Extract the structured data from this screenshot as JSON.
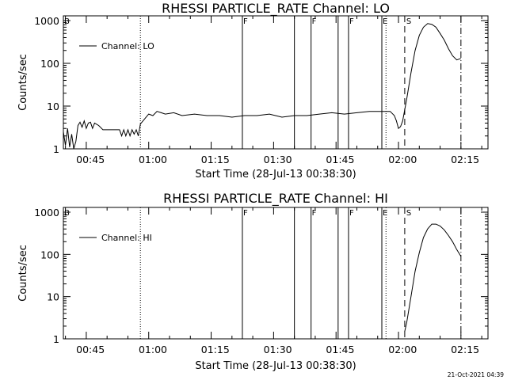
{
  "footer": {
    "timestamp": "21-Oct-2021 04:39"
  },
  "chart_data": [
    {
      "type": "line",
      "title": "RHESSI PARTICLE_RATE Channel: LO",
      "xlabel": "Start Time (28-Jul-13 00:38:30)",
      "ylabel": "Counts/sec",
      "yscale": "log",
      "ylim": [
        1,
        1000
      ],
      "xlim": [
        "00:38:30",
        "02:20:30"
      ],
      "xticks": [
        "00:45",
        "01:00",
        "01:15",
        "01:30",
        "01:45",
        "02:00",
        "02:15"
      ],
      "yticks": [
        "1",
        "10",
        "100",
        "1000"
      ],
      "legend": {
        "position": "top-left",
        "entries": [
          "Channel: LO"
        ]
      },
      "grid": false,
      "series": [
        {
          "name": "Channel: LO",
          "x": [
            "00:38:30",
            "00:39:00",
            "00:39:30",
            "00:40:00",
            "00:40:30",
            "00:41:00",
            "00:41:30",
            "00:42:00",
            "00:42:30",
            "00:43:00",
            "00:43:30",
            "00:44:00",
            "00:44:30",
            "00:45:00",
            "00:45:30",
            "00:46:00",
            "00:47:00",
            "00:48:00",
            "00:49:00",
            "00:50:00",
            "00:51:00",
            "00:52:00",
            "00:52:30",
            "00:53:00",
            "00:53:30",
            "00:54:00",
            "00:54:30",
            "00:55:00",
            "00:55:30",
            "00:56:00",
            "00:56:30",
            "00:57:00",
            "00:58:00",
            "00:59:00",
            "01:00:00",
            "01:01:00",
            "01:02:00",
            "01:03:00",
            "01:05:00",
            "01:07:00",
            "01:10:00",
            "01:13:00",
            "01:16:00",
            "01:19:00",
            "01:22:00",
            "01:25:00",
            "01:28:00",
            "01:31:00",
            "01:34:00",
            "01:37:00",
            "01:40:00",
            "01:43:00",
            "01:46:00",
            "01:49:00",
            "01:52:00",
            "01:55:00",
            "01:57:00",
            "01:58:00",
            "01:58:30",
            "01:59:00",
            "01:59:30",
            "02:00:00",
            "02:01:00",
            "02:02:00",
            "02:03:00",
            "02:04:00",
            "02:05:00",
            "02:06:00",
            "02:07:00",
            "02:08:00",
            "02:09:00",
            "02:10:00",
            "02:11:00",
            "02:12:00",
            "02:13:00",
            "02:14:00"
          ],
          "y": [
            2.5,
            1.2,
            3.0,
            1.1,
            2.2,
            1.0,
            1.5,
            3.5,
            4.2,
            3.2,
            4.5,
            3.0,
            4.0,
            4.2,
            3.0,
            4.0,
            3.5,
            2.8,
            2.8,
            2.8,
            2.8,
            2.8,
            2.0,
            2.8,
            2.0,
            2.8,
            2.0,
            2.8,
            2.2,
            2.8,
            2.0,
            3.8,
            5.0,
            6.5,
            6.0,
            7.5,
            7.0,
            6.5,
            7.0,
            6.0,
            6.5,
            6.0,
            6.0,
            5.5,
            6.0,
            6.0,
            6.5,
            5.5,
            6.0,
            6.0,
            6.5,
            7.0,
            6.5,
            7.0,
            7.5,
            7.5,
            7.5,
            6.0,
            4.5,
            3.0,
            3.3,
            4.5,
            15,
            60,
            200,
            450,
            700,
            850,
            820,
            700,
            500,
            350,
            220,
            150,
            120,
            130
          ]
        }
      ],
      "annotations": {
        "dotted_lines": [
          "00:57:00",
          "01:56:00"
        ],
        "solid_lines": [
          {
            "x": "01:21:30",
            "label": "F"
          },
          {
            "x": "01:34:00",
            "label": ""
          },
          {
            "x": "01:38:00",
            "label": "F"
          },
          {
            "x": "01:44:30",
            "label": ""
          },
          {
            "x": "01:47:00",
            "label": "F"
          },
          {
            "x": "01:55:00",
            "label": "E"
          }
        ],
        "dashed_lines": [
          {
            "x": "02:00:30",
            "label": "S"
          }
        ],
        "dashdot_lines": [
          "02:14:00"
        ],
        "left_label": "B"
      }
    },
    {
      "type": "line",
      "title": "RHESSI PARTICLE_RATE Channel: HI",
      "xlabel": "Start Time (28-Jul-13 00:38:30)",
      "ylabel": "Counts/sec",
      "yscale": "log",
      "ylim": [
        1,
        1000
      ],
      "xlim": [
        "00:38:30",
        "02:20:30"
      ],
      "xticks": [
        "00:45",
        "01:00",
        "01:15",
        "01:30",
        "01:45",
        "02:00",
        "02:15"
      ],
      "yticks": [
        "1",
        "10",
        "100",
        "1000"
      ],
      "legend": {
        "position": "top-left",
        "entries": [
          "Channel: HI"
        ]
      },
      "grid": false,
      "series": [
        {
          "name": "Channel: HI",
          "x": [
            "02:00:30",
            "02:01:00",
            "02:02:00",
            "02:03:00",
            "02:04:00",
            "02:05:00",
            "02:06:00",
            "02:07:00",
            "02:08:00",
            "02:09:00",
            "02:10:00",
            "02:11:00",
            "02:12:00",
            "02:13:00",
            "02:14:00"
          ],
          "y": [
            1.5,
            2.5,
            10,
            40,
            110,
            250,
            400,
            520,
            520,
            470,
            380,
            280,
            200,
            130,
            90
          ]
        }
      ],
      "annotations": {
        "dotted_lines": [
          "00:57:00",
          "01:56:00"
        ],
        "solid_lines": [
          {
            "x": "01:21:30",
            "label": "F"
          },
          {
            "x": "01:34:00",
            "label": ""
          },
          {
            "x": "01:38:00",
            "label": "F"
          },
          {
            "x": "01:44:30",
            "label": ""
          },
          {
            "x": "01:47:00",
            "label": "F"
          },
          {
            "x": "01:55:00",
            "label": "E"
          }
        ],
        "dashed_lines": [
          {
            "x": "02:00:30",
            "label": "S"
          }
        ],
        "dashdot_lines": [
          "02:14:00"
        ],
        "left_label": "B"
      }
    }
  ]
}
